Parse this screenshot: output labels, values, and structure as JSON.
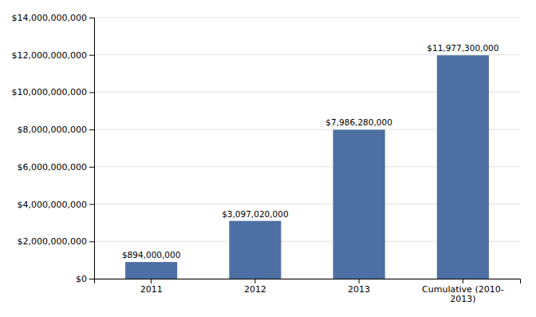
{
  "chart_data": {
    "type": "bar",
    "categories": [
      "2011",
      "2012",
      "2013",
      "Cumulative (2010-\n2013)"
    ],
    "values": [
      894000000,
      3097020000,
      7986280000,
      11977300000
    ],
    "value_labels": [
      "$894,000,000",
      "$3,097,020,000",
      "$7,986,280,000",
      "$11,977,300,000"
    ],
    "data_labels": true,
    "color": "#4e6fa3",
    "ylim": [
      0,
      14000000000
    ],
    "yticks": [
      {
        "value": 0,
        "label": "$0"
      },
      {
        "value": 2000000000,
        "label": "$2,000,000,000"
      },
      {
        "value": 4000000000,
        "label": "$4,000,000,000"
      },
      {
        "value": 6000000000,
        "label": "$6,000,000,000"
      },
      {
        "value": 8000000000,
        "label": "$8,000,000,000"
      },
      {
        "value": 10000000000,
        "label": "$10,000,000,000"
      },
      {
        "value": 12000000000,
        "label": "$12,000,000,000"
      },
      {
        "value": 14000000000,
        "label": "$14,000,000,000"
      }
    ],
    "grid": true
  }
}
